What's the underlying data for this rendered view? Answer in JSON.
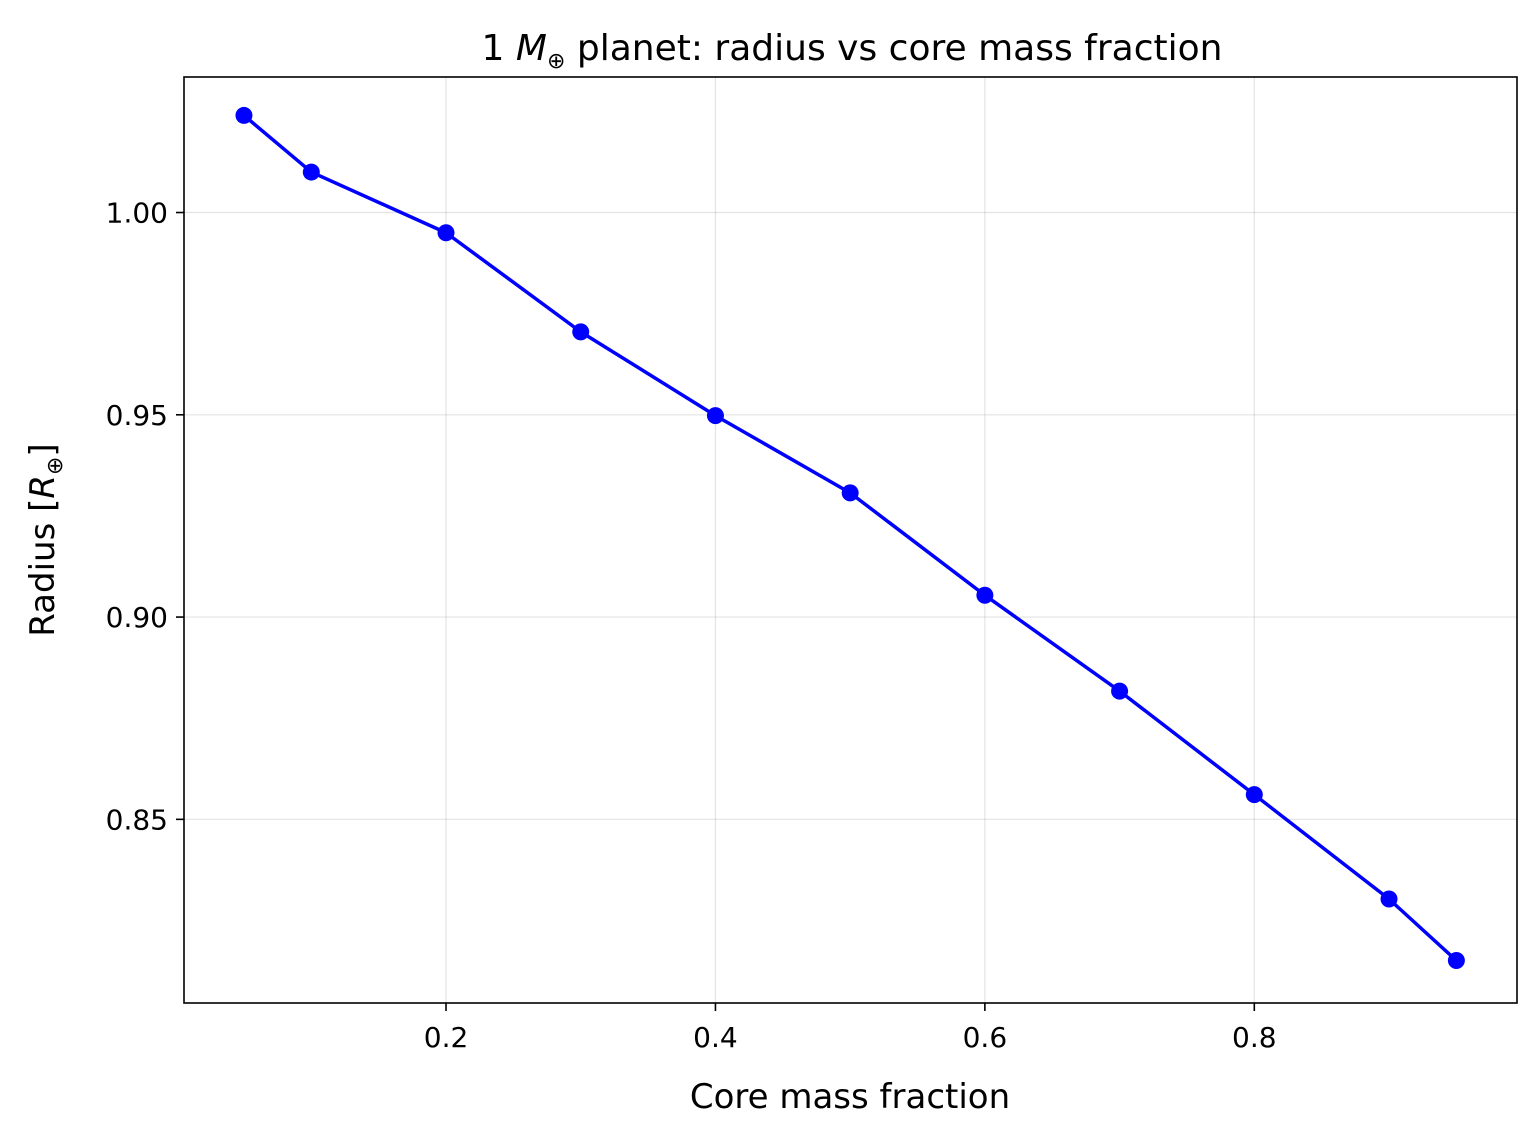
{
  "chart_data": {
    "type": "line",
    "title_prefix": "1 ",
    "title_math_symbol": "M",
    "title_math_subscript": "⊕",
    "title_suffix": " planet: radius vs core mass fraction",
    "xlabel": "Core mass fraction",
    "ylabel_prefix": "Radius [",
    "ylabel_math_symbol": "R",
    "ylabel_math_subscript": "⊕",
    "ylabel_suffix": "]",
    "xlim": [
      0.0055,
      0.995
    ],
    "ylim": [
      0.8046,
      1.0335
    ],
    "xticks": [
      0.2,
      0.4,
      0.6,
      0.8
    ],
    "xtick_labels": [
      "0.2",
      "0.4",
      "0.6",
      "0.8"
    ],
    "yticks": [
      0.85,
      0.9,
      0.95,
      1.0
    ],
    "ytick_labels": [
      "0.85",
      "0.90",
      "0.95",
      "1.00"
    ],
    "grid": true,
    "series": [
      {
        "color": "#0000ff",
        "marker": "circle",
        "x": [
          0.05,
          0.1,
          0.2,
          0.3,
          0.4,
          0.5,
          0.6,
          0.7,
          0.8,
          0.9,
          0.95
        ],
        "y": [
          1.024,
          1.01,
          0.995,
          0.9705,
          0.9498,
          0.9307,
          0.9054,
          0.8817,
          0.8561,
          0.8303,
          0.8151
        ]
      }
    ]
  }
}
